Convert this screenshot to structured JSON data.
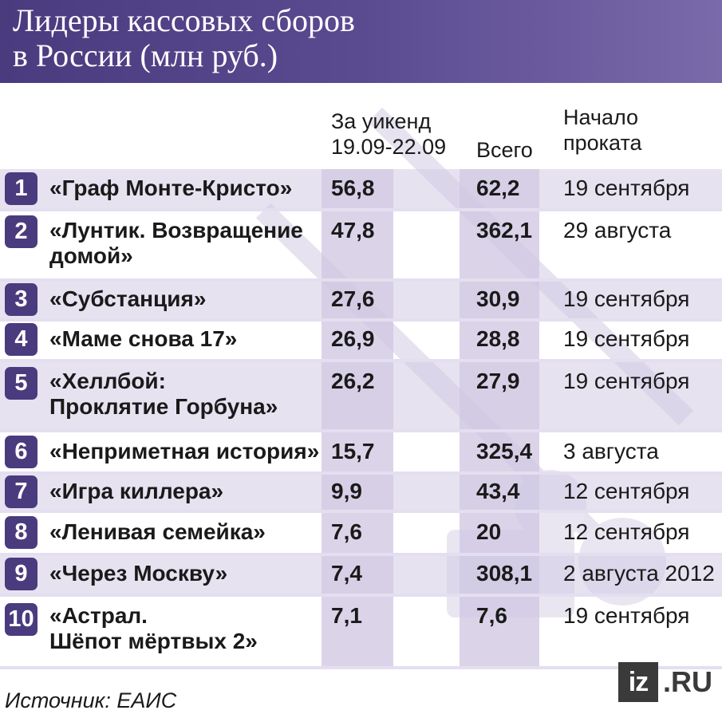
{
  "title_line1": "Лидеры кассовых сборов",
  "title_line2": "в России (млн руб.)",
  "columns": {
    "week_line1": "За уикенд",
    "week_line2": "19.09-22.09",
    "total": "Всего",
    "start_line1": "Начало",
    "start_line2": "проката"
  },
  "rows": [
    {
      "rank": "1",
      "film_line1": "«Граф Монте-Кристо»",
      "film_line2": "",
      "week": "56,8",
      "total": "62,2",
      "start": "19 сентября"
    },
    {
      "rank": "2",
      "film_line1": "«Лунтик. Возвращение",
      "film_line2": "домой»",
      "week": "47,8",
      "total": "362,1",
      "start": "29 августа"
    },
    {
      "rank": "3",
      "film_line1": "«Субстанция»",
      "film_line2": "",
      "week": "27,6",
      "total": "30,9",
      "start": "19 сентября"
    },
    {
      "rank": "4",
      "film_line1": "«Маме снова 17»",
      "film_line2": "",
      "week": "26,9",
      "total": "28,8",
      "start": "19 сентября"
    },
    {
      "rank": "5",
      "film_line1": "«Хеллбой:",
      "film_line2": "Проклятие Горбуна»",
      "week": "26,2",
      "total": "27,9",
      "start": "19 сентября"
    },
    {
      "rank": "6",
      "film_line1": "«Неприметная история»",
      "film_line2": "",
      "week": "15,7",
      "total": "325,4",
      "start": "3 августа"
    },
    {
      "rank": "7",
      "film_line1": "«Игра киллера»",
      "film_line2": "",
      "week": "9,9",
      "total": "43,4",
      "start": "12 сентября"
    },
    {
      "rank": "8",
      "film_line1": "«Ленивая семейка»",
      "film_line2": "",
      "week": "7,6",
      "total": "20",
      "start": "12 сентября"
    },
    {
      "rank": "9",
      "film_line1": "«Через Москву»",
      "film_line2": "",
      "week": "7,4",
      "total": "308,1",
      "start": "2 августа 2012"
    },
    {
      "rank": "10",
      "film_line1": "«Астрал.",
      "film_line2": "Шёпот мёртвых 2»",
      "week": "7,1",
      "total": "7,6",
      "start": "19 сентября"
    }
  ],
  "source": "Источник: ЕАИС",
  "logo": {
    "box": "iz",
    "text": ".RU"
  },
  "colors": {
    "header": "#4a3a7e",
    "badge": "#4a3b7e",
    "band": "#cfc6e2"
  }
}
